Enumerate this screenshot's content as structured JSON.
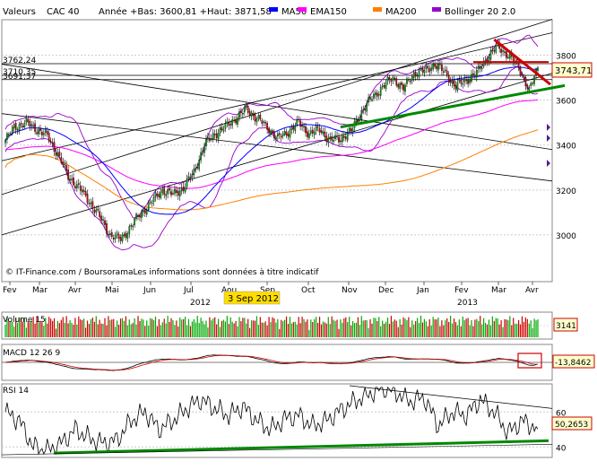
{
  "header": {
    "label": "Valeurs",
    "instrument": "CAC 40",
    "year_range": "Année +Bas: 3600,81 +Haut: 3871,58"
  },
  "legend": [
    {
      "name": "MA50",
      "color": "#0000ff"
    },
    {
      "name": "EMA150",
      "color": "#ff00ff"
    },
    {
      "name": "MA200",
      "color": "#ff8000"
    },
    {
      "name": "Bollinger 20 2.0",
      "color": "#9900cc"
    }
  ],
  "watermark": "© IT-Finance.com / BoursoramaLes informations sont données à titre indicatif",
  "price_level_labels": [
    "3762,24",
    "3710,35",
    "3691,37"
  ],
  "last_price_label": "3743,71",
  "cursor_date_label": "3 Sep 2012",
  "colors": {
    "up_candle": "#00aa00",
    "down_candle": "#cc0000",
    "trend_green": "#008800",
    "trend_red": "#cc0000",
    "cursor_bg": "#ffdd00"
  },
  "icons": [
    "down-triangle-marker-icon"
  ],
  "chart_data": [
    {
      "type": "candlestick",
      "id": "price",
      "title": "CAC 40",
      "ylim": [
        2800,
        3950
      ],
      "y_ticks": [
        3000,
        3200,
        3400,
        3600,
        3800
      ],
      "x_months": [
        "Fev",
        "Mar",
        "Avr",
        "Mai",
        "Jun",
        "Jul",
        "Aou",
        "Sep",
        "Oct",
        "Nov",
        "Dec",
        "Jan",
        "Fev",
        "Mar",
        "Avr"
      ],
      "x_years": [
        "2012",
        "2013"
      ],
      "close_anchors": [
        [
          0,
          3420
        ],
        [
          5,
          3480
        ],
        [
          12,
          3500
        ],
        [
          18,
          3470
        ],
        [
          24,
          3440
        ],
        [
          30,
          3360
        ],
        [
          36,
          3260
        ],
        [
          42,
          3210
        ],
        [
          48,
          3150
        ],
        [
          54,
          3080
        ],
        [
          60,
          3000
        ],
        [
          66,
          2980
        ],
        [
          72,
          3040
        ],
        [
          78,
          3100
        ],
        [
          84,
          3150
        ],
        [
          90,
          3200
        ],
        [
          96,
          3180
        ],
        [
          102,
          3210
        ],
        [
          108,
          3280
        ],
        [
          114,
          3400
        ],
        [
          120,
          3450
        ],
        [
          126,
          3480
        ],
        [
          132,
          3520
        ],
        [
          138,
          3560
        ],
        [
          144,
          3520
        ],
        [
          150,
          3480
        ],
        [
          156,
          3430
        ],
        [
          162,
          3460
        ],
        [
          168,
          3500
        ],
        [
          174,
          3450
        ],
        [
          180,
          3470
        ],
        [
          186,
          3420
        ],
        [
          192,
          3430
        ],
        [
          198,
          3460
        ],
        [
          204,
          3550
        ],
        [
          210,
          3610
        ],
        [
          216,
          3660
        ],
        [
          222,
          3700
        ],
        [
          228,
          3650
        ],
        [
          234,
          3720
        ],
        [
          240,
          3730
        ],
        [
          246,
          3760
        ],
        [
          252,
          3720
        ],
        [
          258,
          3660
        ],
        [
          264,
          3690
        ],
        [
          270,
          3720
        ],
        [
          276,
          3790
        ],
        [
          282,
          3840
        ],
        [
          288,
          3800
        ],
        [
          294,
          3750
        ],
        [
          300,
          3640
        ],
        [
          305,
          3743.71
        ]
      ],
      "horizontal_levels": [
        3762.24,
        3710.35,
        3691.37
      ],
      "last_price": 3743.71
    },
    {
      "type": "bar",
      "id": "volume",
      "title": "Volume 15",
      "last_value_label": "3141"
    },
    {
      "type": "line",
      "id": "macd",
      "title": "MACD 12 26 9",
      "last_value_label": "-13,8462"
    },
    {
      "type": "line",
      "id": "rsi",
      "title": "RSI 14",
      "ylim": [
        35,
        75
      ],
      "y_ticks": [
        40,
        60
      ],
      "last_value_label": "50,2653",
      "anchors": [
        [
          0,
          60
        ],
        [
          8,
          55
        ],
        [
          16,
          40
        ],
        [
          24,
          38
        ],
        [
          32,
          42
        ],
        [
          40,
          50
        ],
        [
          48,
          45
        ],
        [
          56,
          42
        ],
        [
          64,
          44
        ],
        [
          72,
          55
        ],
        [
          80,
          60
        ],
        [
          88,
          50
        ],
        [
          96,
          55
        ],
        [
          104,
          62
        ],
        [
          112,
          67
        ],
        [
          120,
          62
        ],
        [
          128,
          58
        ],
        [
          136,
          63
        ],
        [
          144,
          55
        ],
        [
          152,
          50
        ],
        [
          160,
          56
        ],
        [
          168,
          58
        ],
        [
          176,
          52
        ],
        [
          184,
          55
        ],
        [
          192,
          61
        ],
        [
          200,
          66
        ],
        [
          208,
          70
        ],
        [
          216,
          74
        ],
        [
          224,
          71
        ],
        [
          232,
          66
        ],
        [
          240,
          68
        ],
        [
          248,
          52
        ],
        [
          256,
          60
        ],
        [
          264,
          58
        ],
        [
          272,
          67
        ],
        [
          280,
          60
        ],
        [
          288,
          48
        ],
        [
          296,
          55
        ],
        [
          305,
          50.27
        ]
      ]
    }
  ]
}
